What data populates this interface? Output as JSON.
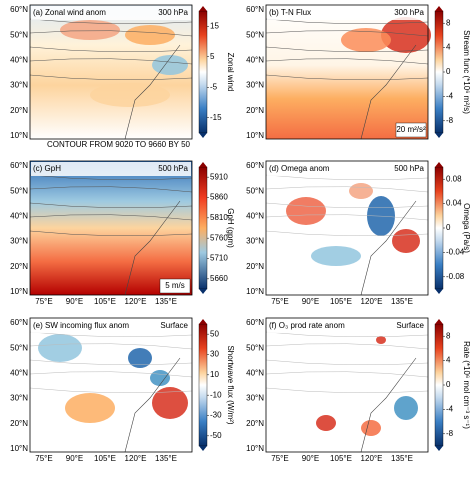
{
  "lat_ticks": [
    "60°N",
    "50°N",
    "40°N",
    "30°N",
    "20°N",
    "10°N"
  ],
  "lon_ticks": [
    "75°E",
    "90°E",
    "105°E",
    "120°E",
    "135°E"
  ],
  "panels": [
    {
      "label": "(a) Zonal wind anom",
      "level": "300 hPa",
      "colorbar_ticks": [
        "15",
        "5",
        "-5",
        "-15"
      ],
      "colorbar_label": "Zonal wind",
      "note": "CONTOUR FROM 9020 TO 9660 BY 50"
    },
    {
      "label": "(b) T-N Flux",
      "level": "300 hPa",
      "colorbar_ticks": [
        "8",
        "4",
        "0",
        "-4",
        "-8"
      ],
      "colorbar_label": "Stream func (*10⁶ m²/s)",
      "vector_ref": "20 m²/s²"
    },
    {
      "label": "(c) GpH",
      "level": "500 hPa",
      "colorbar_ticks": [
        "5910",
        "5860",
        "5810",
        "5760",
        "5710",
        "5660"
      ],
      "colorbar_label": "GpH (gpm)",
      "vector_ref": "5 m/s"
    },
    {
      "label": "(d) Omega anom",
      "level": "500 hPa",
      "colorbar_ticks": [
        "0.08",
        "0.04",
        "0",
        "-0.04",
        "-0.08"
      ],
      "colorbar_label": "Omega (Pa/s)"
    },
    {
      "label": "(e) SW incoming flux anom",
      "level": "Surface",
      "colorbar_ticks": [
        "50",
        "30",
        "10",
        "-10",
        "-30",
        "-50"
      ],
      "colorbar_label": "Shortwave flux (W/m²)"
    },
    {
      "label": "(f) O₃ prod rate anom",
      "level": "Surface",
      "colorbar_ticks": [
        "8",
        "4",
        "0",
        "-4",
        "-8"
      ],
      "colorbar_label": "Rate (*10⁶ mol cm⁻³ s⁻¹)"
    }
  ]
}
